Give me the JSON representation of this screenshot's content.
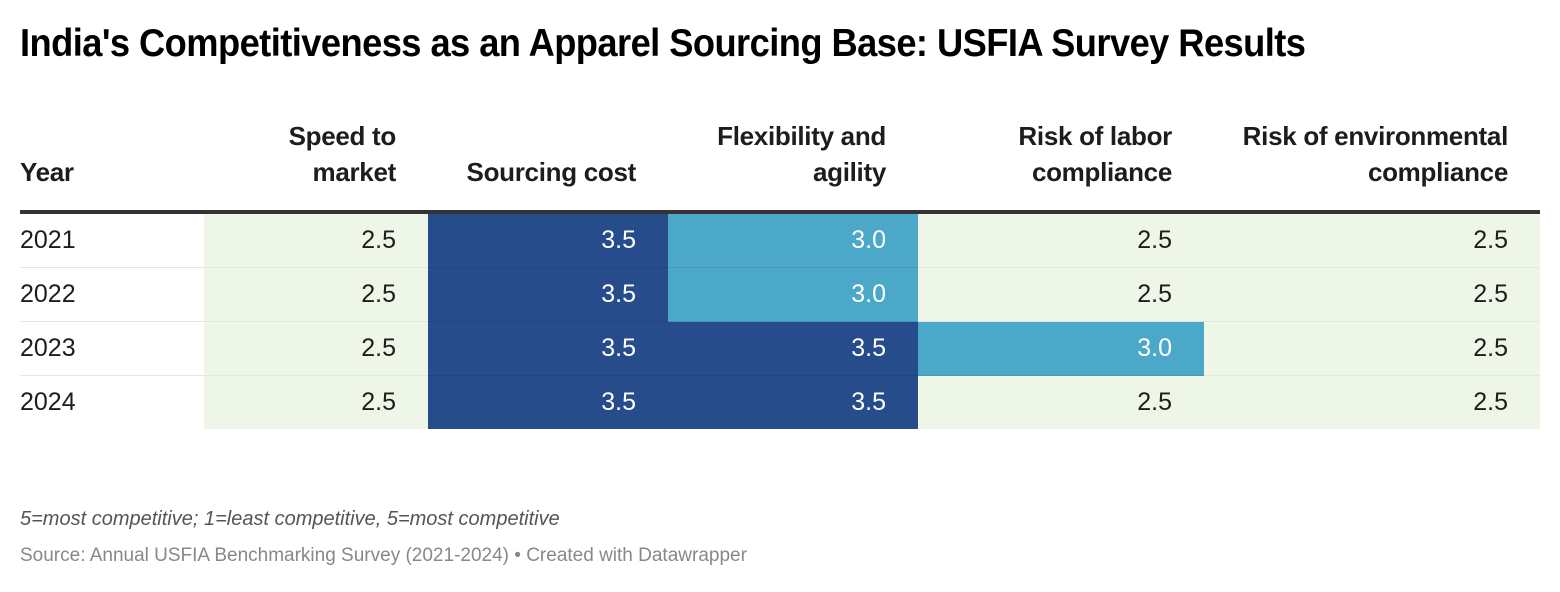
{
  "title": "India's Competitiveness as an Apparel Sourcing Base: USFIA Survey Results",
  "colors": {
    "level_2_5": "#eef7e7",
    "level_3_0": "#4ba8c9",
    "level_3_5": "#264c8c",
    "text_dark": "#1d1d1d",
    "text_light": "#ffffff"
  },
  "chart_data": {
    "type": "table",
    "title": "India's Competitiveness as an Apparel Sourcing Base: USFIA Survey Results",
    "columns": [
      "Year",
      "Speed to market",
      "Sourcing cost",
      "Flexibility and agility",
      "Risk of labor compliance",
      "Risk of environmental compliance"
    ],
    "rows": [
      {
        "year": "2021",
        "values": [
          "2.5",
          "3.5",
          "3.0",
          "2.5",
          "2.5"
        ]
      },
      {
        "year": "2022",
        "values": [
          "2.5",
          "3.5",
          "3.0",
          "2.5",
          "2.5"
        ]
      },
      {
        "year": "2023",
        "values": [
          "2.5",
          "3.5",
          "3.5",
          "3.0",
          "2.5"
        ]
      },
      {
        "year": "2024",
        "values": [
          "2.5",
          "3.5",
          "3.5",
          "2.5",
          "2.5"
        ]
      }
    ],
    "scale_note": "5=most competitive; 1=least competitive, 5=most competitive"
  },
  "notes": "5=most competitive; 1=least competitive, 5=most competitive",
  "source": "Source: Annual USFIA Benchmarking Survey (2021-2024) • Created with Datawrapper"
}
